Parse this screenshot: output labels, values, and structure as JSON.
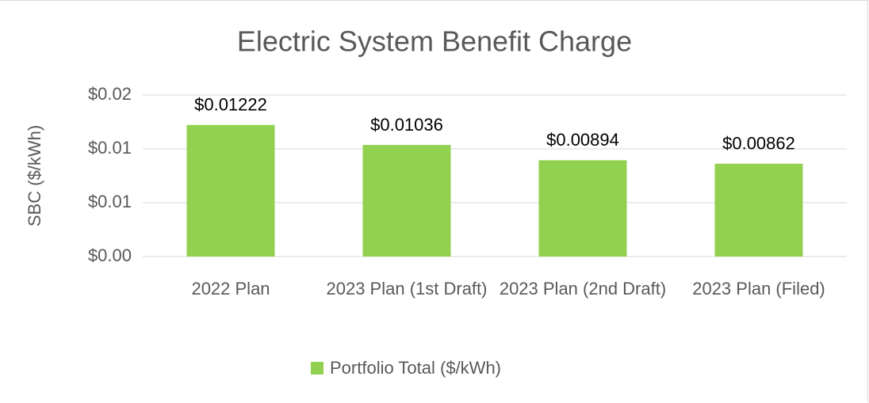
{
  "chart_data": {
    "type": "bar",
    "title": "Electric System Benefit Charge",
    "y_label": "SBC ($/kWh)",
    "categories": [
      "2022 Plan",
      "2023 Plan (1st Draft)",
      "2023 Plan (2nd Draft)",
      "2023 Plan (Filed)"
    ],
    "series": [
      {
        "name": "Portfolio Total ($/kWh)",
        "color": "#92d050",
        "values": [
          0.01222,
          0.01036,
          0.00894,
          0.00862
        ],
        "value_labels": [
          "$0.01222",
          "$0.01036",
          "$0.00894",
          "$0.00862"
        ]
      }
    ],
    "ylim": [
      0,
      0.015
    ],
    "yticks": [
      {
        "value": 0,
        "label": "$0.00"
      },
      {
        "value": 0.005,
        "label": "$0.01"
      },
      {
        "value": 0.01,
        "label": "$0.01"
      },
      {
        "value": 0.015,
        "label": "$0.02"
      }
    ],
    "grid": true,
    "legend": "bottom"
  }
}
